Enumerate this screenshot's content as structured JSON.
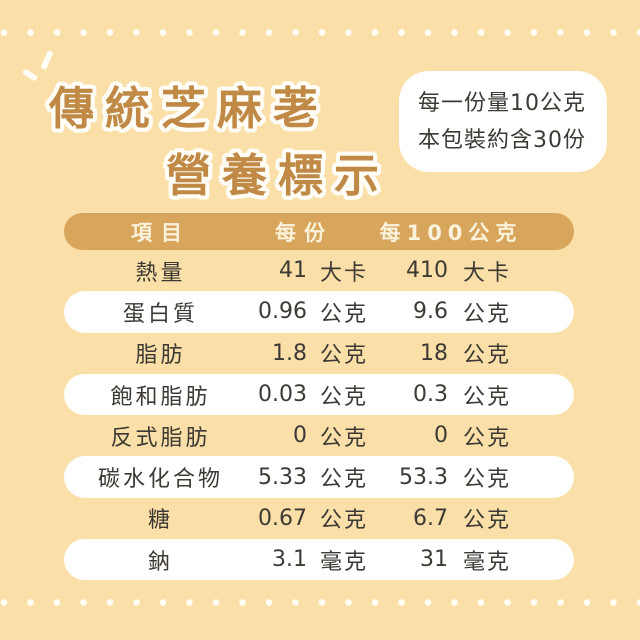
{
  "colors": {
    "background": "#FBDFA8",
    "header_bar": "#D8A55C",
    "header_text": "#FBF2DC",
    "title_text": "#C08A46",
    "title_outline": "#FFFDF6",
    "body_text": "#3D3A35",
    "card": "#FFFFFF"
  },
  "title": {
    "line1": "傳統芝麻荖",
    "line2": "營養標示"
  },
  "serving_box": {
    "line1": "每一份量10公克",
    "line2": "本包裝約含30份"
  },
  "table": {
    "headers": {
      "item": "項目",
      "per_serving": "每份",
      "per_100g": "每100公克"
    },
    "rows": [
      {
        "label": "熱量",
        "v1": "41",
        "u1": "大卡",
        "v2": "410",
        "u2": "大卡"
      },
      {
        "label": "蛋白質",
        "v1": "0.96",
        "u1": "公克",
        "v2": "9.6",
        "u2": "公克"
      },
      {
        "label": "脂肪",
        "v1": "1.8",
        "u1": "公克",
        "v2": "18",
        "u2": "公克"
      },
      {
        "label": "飽和脂肪",
        "v1": "0.03",
        "u1": "公克",
        "v2": "0.3",
        "u2": "公克"
      },
      {
        "label": "反式脂肪",
        "v1": "0",
        "u1": "公克",
        "v2": "0",
        "u2": "公克"
      },
      {
        "label": "碳水化合物",
        "v1": "5.33",
        "u1": "公克",
        "v2": "53.3",
        "u2": "公克"
      },
      {
        "label": "糖",
        "v1": "0.67",
        "u1": "公克",
        "v2": "6.7",
        "u2": "公克"
      },
      {
        "label": "鈉",
        "v1": "3.1",
        "u1": "毫克",
        "v2": "31",
        "u2": "毫克"
      }
    ]
  }
}
